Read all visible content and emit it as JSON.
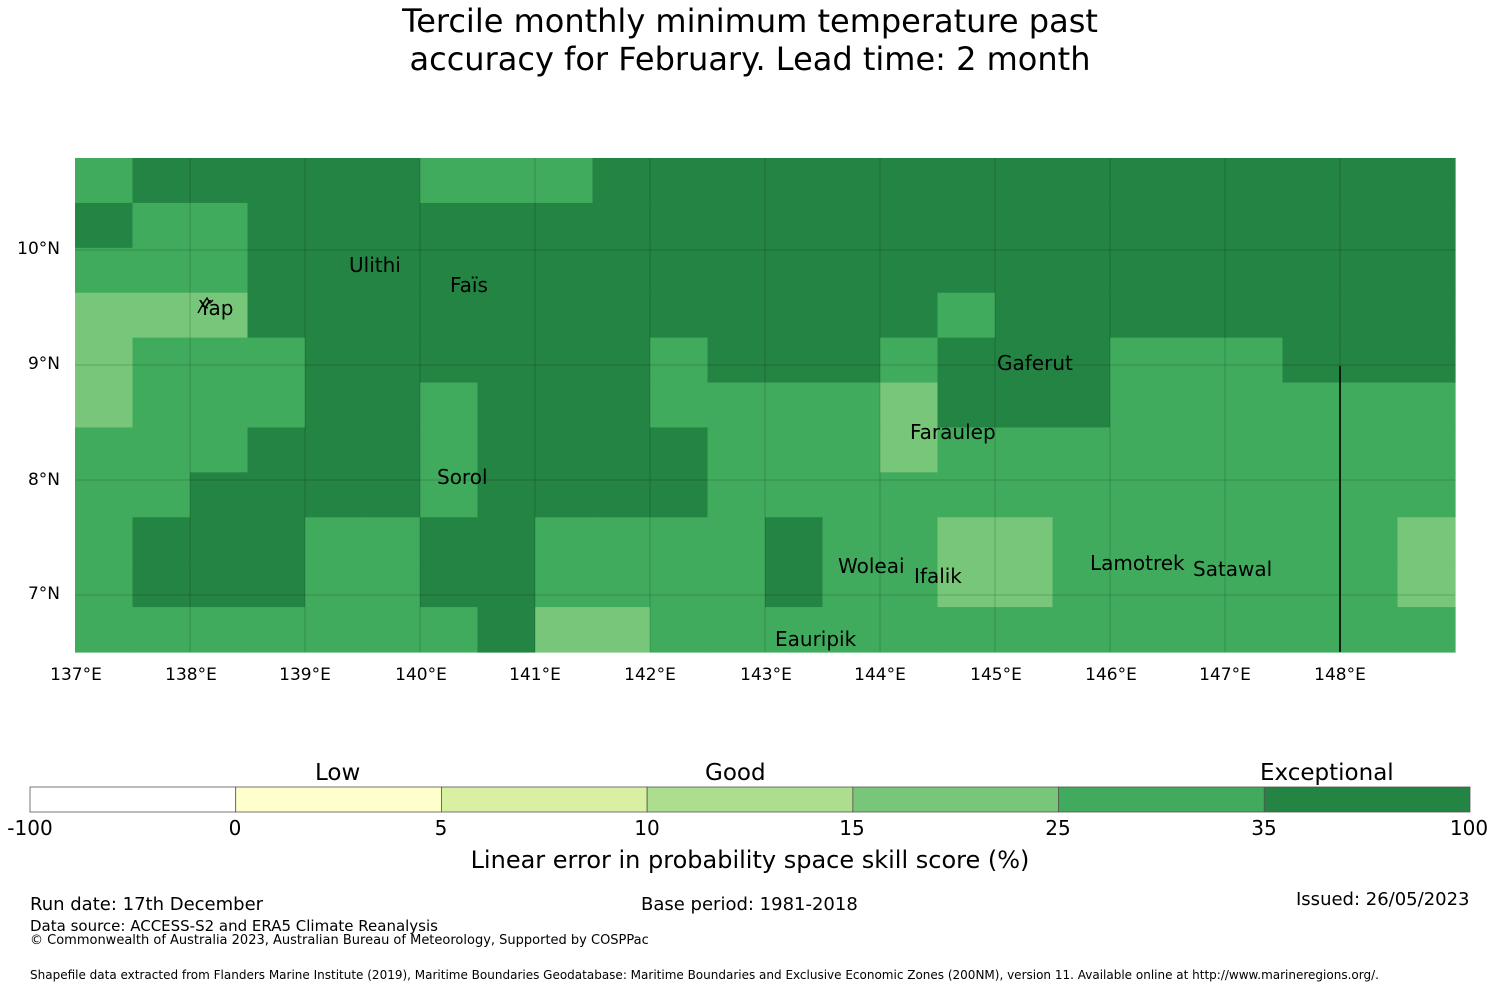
{
  "title": {
    "line1": "Tercile monthly minimum temperature past",
    "line2": "accuracy for February. Lead time: 2 month"
  },
  "map": {
    "lat_ticks": [
      "10°N",
      "9°N",
      "8°N",
      "7°N"
    ],
    "lon_ticks": [
      "137°E",
      "138°E",
      "139°E",
      "140°E",
      "141°E",
      "142°E",
      "143°E",
      "144°E",
      "145°E",
      "146°E",
      "147°E",
      "148°E"
    ],
    "places": [
      "Ulithi",
      "Faïs",
      "Yap",
      "Gaferut",
      "Faraulep",
      "Sorol",
      "Woleai",
      "Ifalik",
      "Lamotrek",
      "Satawal",
      "Eauripik"
    ],
    "grid_colors": {
      "1": "#78c679",
      "2": "#41ab5d",
      "3": "#238443"
    },
    "grid_class_rows": [
      "233333222333333333333333",
      "322333333333333333333333",
      "222333333333333333333333",
      "111333333333333233333333",
      "122233333323332333222333",
      "122233233322221333222222",
      "222333233332221222222222",
      "223333233332222222222222",
      "233322332222322112222221",
      "233322332222322112222221",
      "222222231122222222222222"
    ]
  },
  "colorbar": {
    "categories": [
      "Low",
      "Good",
      "Exceptional"
    ],
    "colors": [
      "#ffffff",
      "#ffffcc",
      "#d9f0a3",
      "#addd8e",
      "#78c679",
      "#41ab5d",
      "#238443"
    ],
    "ticks": [
      "-100",
      "0",
      "5",
      "10",
      "15",
      "25",
      "35",
      "100"
    ],
    "label": "Linear error in probability space skill score (%)"
  },
  "footer": {
    "run_date": "Run date: 17th December",
    "base_period": "Base period: 1981-2018",
    "issued": "Issued: 26/05/2023",
    "data_source": "Data source: ACCESS-S2 and ERA5 Climate Reanalysis",
    "copyright": "© Commonwealth of Australia 2023, Australian Bureau of Meteorology, Supported by COSPPac",
    "shapefile": "Shapefile data extracted from Flanders Marine Institute (2019), Maritime Boundaries Geodatabase: Maritime Boundaries and Exclusive Economic Zones (200NM), version 11. Available online at http://www.marineregions.org/."
  }
}
